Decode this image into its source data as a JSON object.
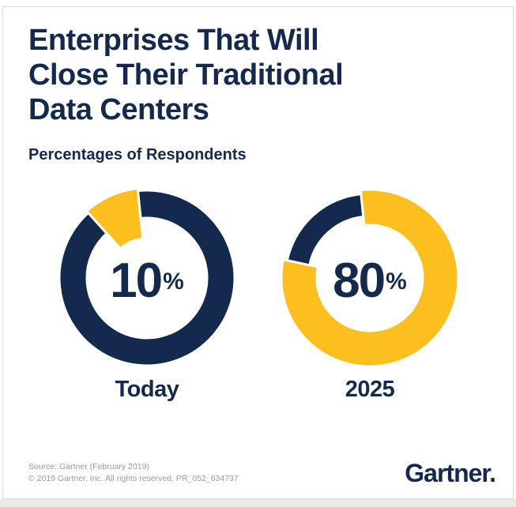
{
  "header": {
    "title_lines": [
      "Enterprises That Will",
      "Close Their Traditional",
      "Data Centers"
    ],
    "title": "Enterprises That Will Close Their Traditional Data Centers",
    "subtitle": "Percentages of Respondents"
  },
  "footer": {
    "source_line1": "Source: Gartner (February 2019)",
    "source_line2": "© 2019 Gartner, Inc. All rights reserved. PR_052_634737",
    "logo_text": "Gartner."
  },
  "colors": {
    "navy": "#13294E",
    "yellow": "#FCBF1E",
    "border": "#D8D8D8",
    "source_text": "#9A9A9A",
    "bottom_band": "#EAEAEA",
    "background": "#FFFFFF"
  },
  "chart_data": {
    "type": "pie",
    "subtype": "donut-pair",
    "title": "Enterprises That Will Close Their Traditional Data Centers",
    "subtitle": "Percentages of Respondents",
    "categories": [
      "Today",
      "2025"
    ],
    "values": [
      10,
      80
    ],
    "legend": "none",
    "charts": [
      {
        "label": "Today",
        "value": 10,
        "unit": "%",
        "center_text": "10",
        "segments": [
          {
            "name": "remainder",
            "value": 90,
            "color": "navy",
            "from_deg": -6,
            "to_deg": 318,
            "outer_r": 111,
            "inner_r": 76
          },
          {
            "name": "will-close",
            "value": 10,
            "color": "yellow",
            "from_deg": 318,
            "to_deg": 354,
            "outer_r": 114,
            "inner_r": 50
          }
        ]
      },
      {
        "label": "2025",
        "value": 80,
        "unit": "%",
        "center_text": "80",
        "segments": [
          {
            "name": "will-close",
            "value": 80,
            "color": "yellow",
            "from_deg": -6,
            "to_deg": 282,
            "outer_r": 112,
            "inner_r": 67
          },
          {
            "name": "remainder",
            "value": 20,
            "color": "navy",
            "from_deg": 282,
            "to_deg": 354,
            "outer_r": 107,
            "inner_r": 78
          }
        ]
      }
    ]
  }
}
